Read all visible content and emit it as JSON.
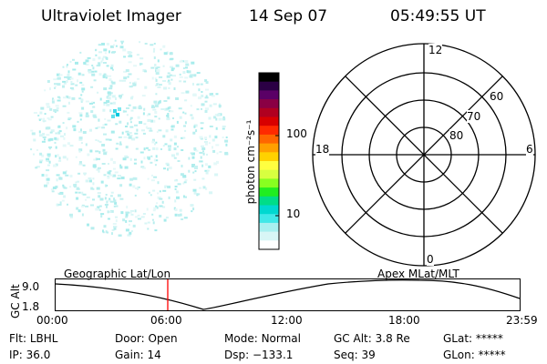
{
  "header": {
    "instrument": "Ultraviolet Imager",
    "date": "14 Sep 07",
    "time": "05:49:55 UT"
  },
  "colorbar": {
    "label": "photon cm⁻²s⁻¹",
    "ticks": [
      "100",
      "10"
    ],
    "colors": [
      "#000000",
      "#2b0044",
      "#5a0066",
      "#8a0044",
      "#b00020",
      "#d80000",
      "#ff2a00",
      "#ff6600",
      "#ffa000",
      "#ffd200",
      "#ffff40",
      "#d8ff40",
      "#88ff20",
      "#20ee20",
      "#00dd88",
      "#00d8d0",
      "#40e8e8",
      "#a8f0f0",
      "#d8f6f6",
      "#ffffff"
    ]
  },
  "polar": {
    "hour_labels": {
      "top": "12",
      "left": "18",
      "right": "6",
      "bottom": "0"
    },
    "lat_labels": [
      "80",
      "70",
      "60"
    ]
  },
  "timeline": {
    "ylabel": "GC Alt",
    "y_top": "9.0",
    "y_bottom": "1.8",
    "left_title": "Geographic Lat/Lon",
    "right_title": "Apex MLat/MLT",
    "x_ticks": [
      "00:00",
      "06:00",
      "12:00",
      "18:00",
      "23:59"
    ]
  },
  "info": {
    "row1": [
      {
        "label": "Flt:",
        "value": "LBHL"
      },
      {
        "label": "Door:",
        "value": "Open"
      },
      {
        "label": "Mode:",
        "value": "Normal"
      },
      {
        "label": "GC Alt:",
        "value": "3.8 Re"
      },
      {
        "label": "GLat:",
        "value": "*****"
      }
    ],
    "row2": [
      {
        "label": "IP:",
        "value": "36.0"
      },
      {
        "label": "Gain:",
        "value": "14"
      },
      {
        "label": "Dsp:",
        "value": "−133.1"
      },
      {
        "label": "Seq:",
        "value": "39"
      },
      {
        "label": "GLon:",
        "value": "*****"
      }
    ]
  }
}
